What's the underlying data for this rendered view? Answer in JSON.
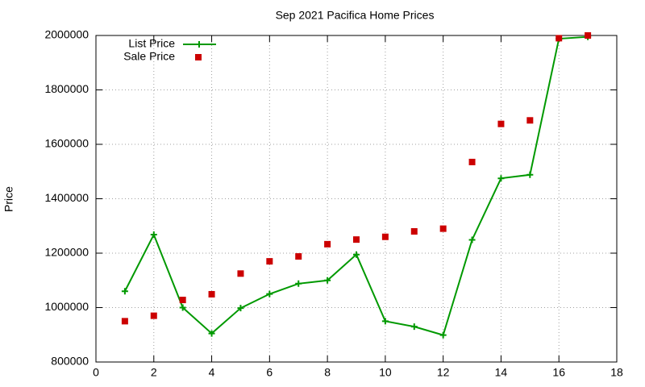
{
  "chart_data": {
    "type": "line",
    "title": "Sep 2021 Pacifica Home Prices",
    "y_label": "Price",
    "x": [
      1,
      2,
      3,
      4,
      5,
      6,
      7,
      8,
      9,
      10,
      11,
      12,
      13,
      14,
      15,
      16,
      17
    ],
    "series": [
      {
        "name": "List Price",
        "color": "#009900",
        "style": "linespoints",
        "marker": "plus",
        "values": [
          1060000,
          1268000,
          1000000,
          905000,
          998000,
          1050000,
          1088000,
          1100000,
          1195000,
          950000,
          930000,
          899000,
          1249000,
          1475000,
          1488000,
          1988000,
          1995000
        ]
      },
      {
        "name": "Sale Price",
        "color": "#cc0000",
        "style": "points",
        "marker": "square",
        "values": [
          950000,
          970000,
          1028000,
          1049000,
          1125000,
          1170000,
          1188000,
          1233000,
          1250000,
          1260000,
          1280000,
          1290000,
          1535000,
          1675000,
          1688000,
          1990000,
          2000000
        ]
      }
    ],
    "xlim": [
      0,
      18
    ],
    "xticks": [
      0,
      2,
      4,
      6,
      8,
      10,
      12,
      14,
      16,
      18
    ],
    "ylim": [
      800000,
      2000000
    ],
    "yticks": [
      800000,
      1000000,
      1200000,
      1400000,
      1600000,
      1800000,
      2000000
    ],
    "grid": true,
    "legend": "top-left"
  }
}
